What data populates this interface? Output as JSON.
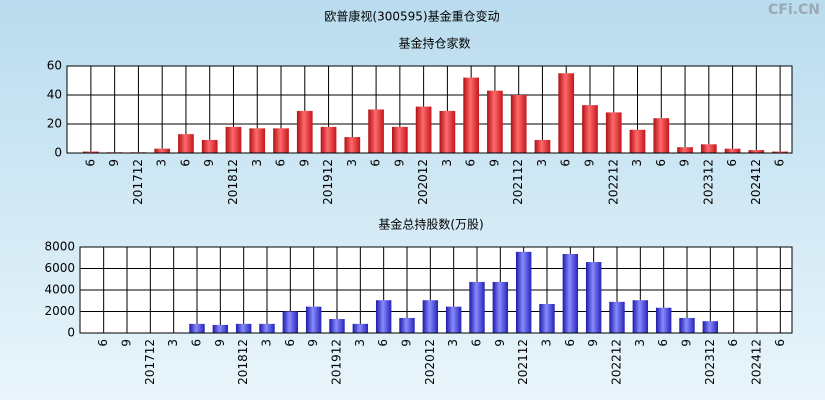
{
  "title": "欧普康视(300595)基金重仓变动",
  "watermark": "CFi.CN",
  "chart_data": [
    {
      "type": "bar",
      "title": "基金持仓家数",
      "color": "#e8232a",
      "categories": [
        "6",
        "9",
        "201712",
        "3",
        "6",
        "9",
        "201812",
        "3",
        "6",
        "9",
        "201912",
        "3",
        "6",
        "9",
        "202012",
        "3",
        "6",
        "9",
        "202112",
        "3",
        "6",
        "9",
        "202212",
        "3",
        "6",
        "9",
        "202312",
        "6",
        "202412",
        "6"
      ],
      "values": [
        1,
        0.5,
        0.5,
        3,
        13,
        9,
        18,
        17,
        17,
        29,
        18,
        11,
        30,
        18,
        32,
        29,
        52,
        43,
        40,
        9,
        55,
        33,
        28,
        16,
        24,
        4,
        6,
        3,
        2,
        1
      ],
      "ylim": [
        0,
        60
      ],
      "yticks": [
        0,
        20,
        40,
        60
      ],
      "grid": true
    },
    {
      "type": "bar",
      "title": "基金总持股数(万股)",
      "color": "#3a3ae0",
      "categories": [
        "6",
        "9",
        "201712",
        "3",
        "6",
        "9",
        "201812",
        "3",
        "6",
        "9",
        "201912",
        "3",
        "6",
        "9",
        "202012",
        "3",
        "6",
        "9",
        "202112",
        "3",
        "6",
        "9",
        "202212",
        "3",
        "6",
        "9",
        "202312",
        "6",
        "202412",
        "6"
      ],
      "values": [
        50,
        30,
        30,
        50,
        850,
        750,
        850,
        850,
        2000,
        2450,
        1300,
        850,
        3050,
        1400,
        3050,
        2450,
        4750,
        4750,
        7550,
        2700,
        7350,
        6600,
        2900,
        3050,
        2350,
        1400,
        1100,
        50,
        50,
        50
      ],
      "ylim": [
        0,
        8000
      ],
      "yticks": [
        0,
        2000,
        4000,
        6000,
        8000
      ],
      "grid": true
    }
  ]
}
